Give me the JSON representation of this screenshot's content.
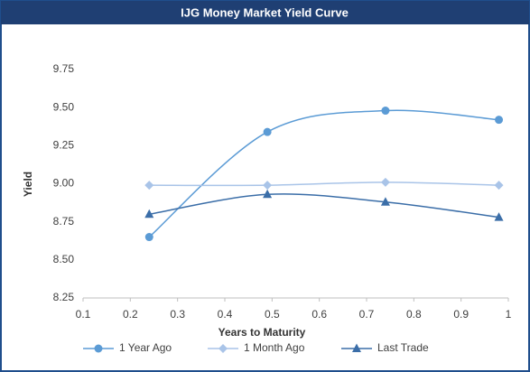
{
  "chart_data": {
    "type": "line",
    "title": "IJG Money Market Yield Curve",
    "x_label": "Years to Maturity",
    "y_label": "Yield",
    "xlim": [
      0.1,
      1
    ],
    "xticks": [
      0.1,
      0.2,
      0.3,
      0.4,
      0.5,
      0.6,
      0.7,
      0.8,
      0.9,
      1
    ],
    "ylim": [
      8.25,
      9.75
    ],
    "yticks": [
      8.25,
      {
        "value": 8.5,
        "label": "8.50"
      },
      8.75,
      {
        "value": 9,
        "label": "9.00"
      },
      9.25,
      {
        "value": 9.5,
        "label": "9.50"
      },
      9.75
    ],
    "grid": false,
    "legend": "bottom",
    "smooth": true,
    "series": [
      {
        "name": "1 Year Ago",
        "color": "#5b9bd5",
        "marker": "circle",
        "x": [
          0.24,
          0.49,
          0.74,
          0.98
        ],
        "values": [
          8.65,
          9.34,
          9.48,
          9.42
        ]
      },
      {
        "name": "1 Month Ago",
        "color": "#a9c4e8",
        "marker": "diamond",
        "x": [
          0.24,
          0.49,
          0.74,
          0.98
        ],
        "values": [
          8.99,
          8.99,
          9.01,
          8.99
        ]
      },
      {
        "name": "Last Trade",
        "color": "#3b6ea8",
        "marker": "triangle",
        "x": [
          0.24,
          0.49,
          0.74,
          0.98
        ],
        "values": [
          8.8,
          8.93,
          8.88,
          8.78
        ]
      }
    ]
  }
}
